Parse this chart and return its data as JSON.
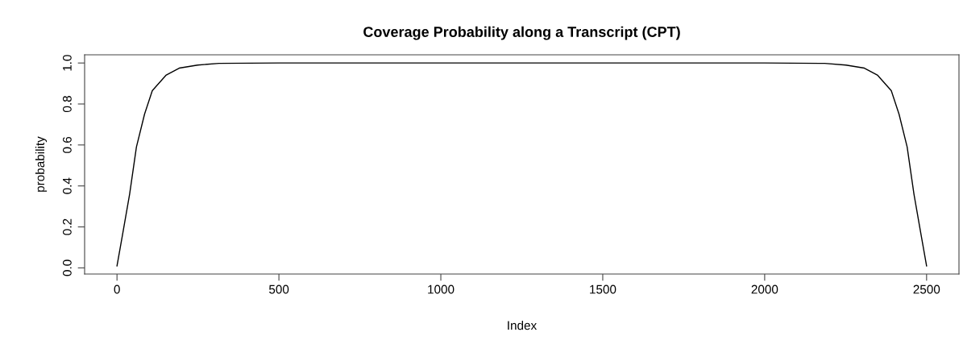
{
  "chart_data": {
    "type": "line",
    "title": "Coverage Probability along a Transcript (CPT)",
    "xlabel": "Index",
    "ylabel": "probability",
    "x": [
      0,
      18,
      39,
      60,
      85,
      109,
      151,
      192,
      249,
      315,
      500,
      1000,
      1500,
      2000,
      2185,
      2251,
      2308,
      2349,
      2391,
      2415,
      2440,
      2461,
      2482,
      2500
    ],
    "series": [
      {
        "color": "#000000",
        "values": [
          0.01,
          0.17,
          0.36,
          0.59,
          0.75,
          0.865,
          0.94,
          0.975,
          0.99,
          0.998,
          1.0,
          1.0,
          1.0,
          1.0,
          0.998,
          0.99,
          0.975,
          0.94,
          0.865,
          0.75,
          0.59,
          0.36,
          0.17,
          0.01
        ]
      }
    ],
    "xlim": [
      -100,
      2600
    ],
    "ylim": [
      -0.03,
      1.04
    ],
    "xticks": [
      0,
      500,
      1000,
      1500,
      2000,
      2500
    ],
    "yticks": [
      {
        "value": 0,
        "label": "0.0"
      },
      0.2,
      0.4,
      0.6,
      0.8,
      {
        "value": 1,
        "label": "1.0"
      }
    ],
    "marker": "none",
    "line_style": "solid"
  }
}
